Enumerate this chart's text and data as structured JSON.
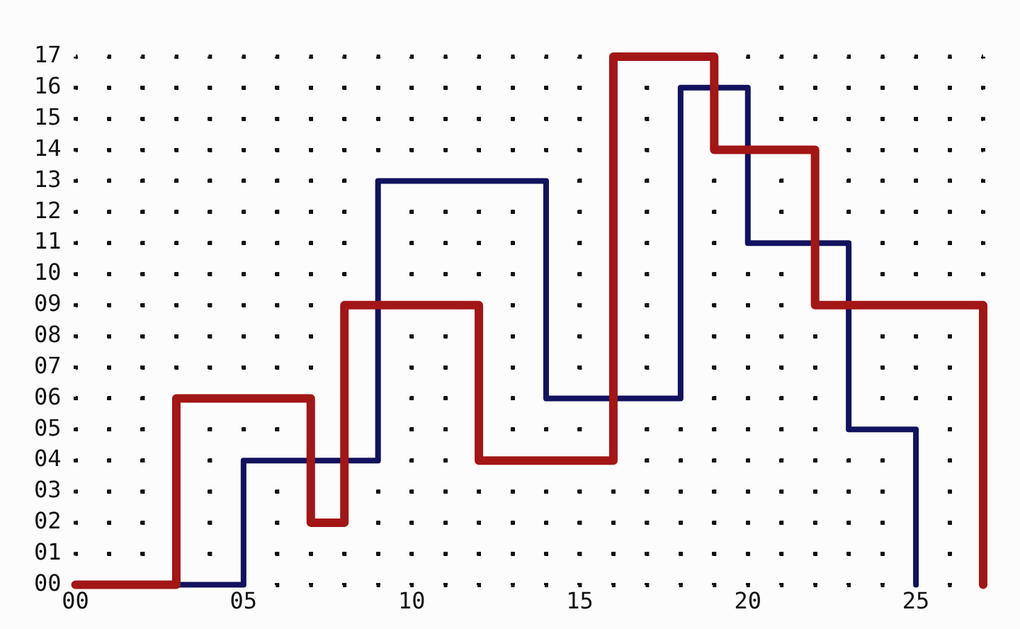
{
  "chart_data": {
    "type": "step",
    "series": [
      {
        "color": "#a31616",
        "x": [
          0,
          3,
          7,
          8,
          12,
          16,
          19,
          22,
          27
        ],
        "values": [
          0,
          6,
          2,
          9,
          4,
          17,
          14,
          9,
          0
        ]
      },
      {
        "color": "#12125e",
        "x": [
          0,
          5,
          9,
          14,
          18,
          20,
          23,
          25
        ],
        "values": [
          0,
          4,
          13,
          6,
          16,
          11,
          5,
          0
        ]
      }
    ],
    "xlim": [
      0,
      27
    ],
    "ylim": [
      0,
      17
    ],
    "xticks": [
      {
        "value": 0,
        "label": "00"
      },
      {
        "value": 1,
        "label": null
      },
      {
        "value": 2,
        "label": null
      },
      {
        "value": 3,
        "label": null
      },
      {
        "value": 4,
        "label": null
      },
      {
        "value": 5,
        "label": "05"
      },
      {
        "value": 6,
        "label": null
      },
      {
        "value": 7,
        "label": null
      },
      {
        "value": 8,
        "label": null
      },
      {
        "value": 9,
        "label": null
      },
      {
        "value": 10,
        "label": "10"
      },
      {
        "value": 11,
        "label": null
      },
      {
        "value": 12,
        "label": null
      },
      {
        "value": 13,
        "label": null
      },
      {
        "value": 14,
        "label": null
      },
      {
        "value": 15,
        "label": "15"
      },
      {
        "value": 16,
        "label": null
      },
      {
        "value": 17,
        "label": null
      },
      {
        "value": 18,
        "label": null
      },
      {
        "value": 19,
        "label": null
      },
      {
        "value": 20,
        "label": "20"
      },
      {
        "value": 21,
        "label": null
      },
      {
        "value": 22,
        "label": null
      },
      {
        "value": 23,
        "label": null
      },
      {
        "value": 24,
        "label": null
      },
      {
        "value": 25,
        "label": "25"
      },
      {
        "value": 26,
        "label": null
      },
      {
        "value": 27,
        "label": null
      }
    ],
    "yticks": [
      {
        "value": 0,
        "label": "00"
      },
      {
        "value": 1,
        "label": "01"
      },
      {
        "value": 2,
        "label": "02"
      },
      {
        "value": 3,
        "label": "03"
      },
      {
        "value": 4,
        "label": "04"
      },
      {
        "value": 5,
        "label": "05"
      },
      {
        "value": 6,
        "label": "06"
      },
      {
        "value": 7,
        "label": "07"
      },
      {
        "value": 8,
        "label": "08"
      },
      {
        "value": 9,
        "label": "09"
      },
      {
        "value": 10,
        "label": "10"
      },
      {
        "value": 11,
        "label": "11"
      },
      {
        "value": 12,
        "label": "12"
      },
      {
        "value": 13,
        "label": "13"
      },
      {
        "value": 14,
        "label": "14"
      },
      {
        "value": 15,
        "label": "15"
      },
      {
        "value": 16,
        "label": "16"
      },
      {
        "value": 17,
        "label": "17"
      }
    ],
    "grid": true,
    "legend": false,
    "marker": "none",
    "line_style": "solid"
  }
}
